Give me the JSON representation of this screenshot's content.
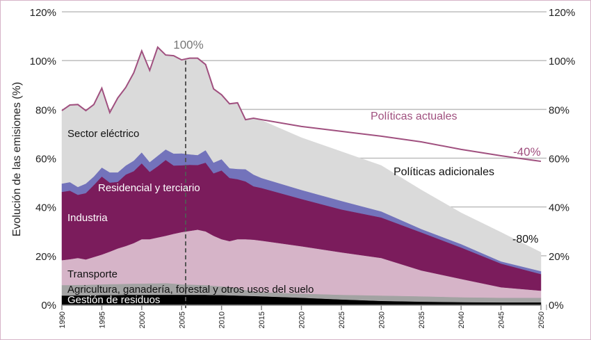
{
  "chart_data": {
    "type": "area",
    "stacked": true,
    "ylabel": "Evolución de las emisiones (%)",
    "ylim": [
      0,
      120
    ],
    "yticks": [
      "0%",
      "20%",
      "40%",
      "60%",
      "80%",
      "100%",
      "120%"
    ],
    "ytick_values": [
      0,
      20,
      40,
      60,
      80,
      100,
      120
    ],
    "xlim": [
      1990,
      2050
    ],
    "xticks": [
      "1990",
      "1995",
      "2000",
      "2005",
      "2010",
      "2015",
      "2020",
      "2025",
      "2030",
      "2035",
      "2040",
      "2045",
      "2050"
    ],
    "grid": "horizontal",
    "x": [
      1990,
      1991,
      1992,
      1993,
      1994,
      1995,
      1996,
      1997,
      1998,
      1999,
      2000,
      2001,
      2002,
      2003,
      2004,
      2005,
      2006,
      2007,
      2008,
      2009,
      2010,
      2011,
      2012,
      2013,
      2014,
      2015,
      2020,
      2025,
      2030,
      2035,
      2040,
      2045,
      2050
    ],
    "series": [
      {
        "name": "Gestión de residuos",
        "color": "#000000",
        "values": [
          3.7,
          3.7,
          3.8,
          3.8,
          3.8,
          3.9,
          3.9,
          3.9,
          4.0,
          4.0,
          4.0,
          4.0,
          4.0,
          4.0,
          4.0,
          4.0,
          4.0,
          4.0,
          4.0,
          3.9,
          3.9,
          3.8,
          3.7,
          3.6,
          3.5,
          3.4,
          2.8,
          2.1,
          1.5,
          1.2,
          1.0,
          0.9,
          0.9
        ]
      },
      {
        "name": "Agricultura, ganadería, forestal y otros usos del suelo",
        "color": "#a3a3a3",
        "values": [
          4.3,
          4.3,
          4.3,
          4.3,
          4.4,
          4.4,
          4.5,
          4.5,
          4.5,
          4.6,
          4.6,
          4.7,
          4.7,
          4.8,
          4.6,
          4.3,
          4.2,
          4.1,
          4.0,
          3.8,
          3.6,
          3.4,
          3.0,
          2.4,
          1.9,
          1.7,
          1.7,
          1.9,
          2.2,
          2.2,
          2.0,
          1.9,
          1.9
        ]
      },
      {
        "name": "Transporte",
        "color": "#d6b4c8",
        "values": [
          10.2,
          10.6,
          11.0,
          10.4,
          11.3,
          12.2,
          13.3,
          14.6,
          15.5,
          16.6,
          18.2,
          18.1,
          18.8,
          19.4,
          20.4,
          21.4,
          22.0,
          22.6,
          22.0,
          20.5,
          19.3,
          18.8,
          20.1,
          20.8,
          21.2,
          21.1,
          19.4,
          17.4,
          15.4,
          10.6,
          7.5,
          4.3,
          2.9
        ]
      },
      {
        "name": "Industria",
        "color": "#7b1c5c",
        "values": [
          28.0,
          28.1,
          25.9,
          27.2,
          29.5,
          32.0,
          28.3,
          27.3,
          29.3,
          29.5,
          31.1,
          27.6,
          29.2,
          31.1,
          28.0,
          27.4,
          27.1,
          26.5,
          28.2,
          25.6,
          28.2,
          25.9,
          24.6,
          23.7,
          21.9,
          21.6,
          19.4,
          17.6,
          16.6,
          15.6,
          12.9,
          9.7,
          6.8
        ]
      },
      {
        "name": "Residencial y terciario",
        "color": "#7373bb",
        "values": [
          3.4,
          3.5,
          3.2,
          3.9,
          3.5,
          3.7,
          4.2,
          3.9,
          3.7,
          4.3,
          4.5,
          4.0,
          4.3,
          4.3,
          4.9,
          4.9,
          4.3,
          4.1,
          5.1,
          4.4,
          4.6,
          4.0,
          4.2,
          5.0,
          4.8,
          4.1,
          3.7,
          3.5,
          2.5,
          1.4,
          1.4,
          0.9,
          1.2
        ]
      },
      {
        "name": "Sector eléctrico",
        "color": "#dadada",
        "values": [
          29.9,
          31.6,
          33.8,
          29.9,
          29.5,
          32.5,
          24.5,
          30.5,
          32.0,
          36.0,
          41.6,
          37.6,
          44.5,
          38.7,
          40.1,
          38.3,
          39.4,
          39.7,
          35.1,
          30.2,
          26.4,
          26.4,
          27.1,
          20.3,
          23.1,
          23.6,
          21.4,
          20.2,
          18.8,
          16.0,
          12.8,
          11.9,
          7.7
        ]
      }
    ],
    "line": {
      "name": "Políticas actuales",
      "color": "#a0507f",
      "values": [
        79.5,
        81.8,
        82.0,
        79.5,
        82.0,
        88.7,
        78.7,
        84.7,
        89.0,
        95.0,
        104.0,
        96.0,
        105.5,
        102.3,
        102.0,
        100.3,
        101.0,
        101.0,
        98.4,
        88.4,
        86.0,
        82.3,
        82.7,
        75.8,
        76.4,
        75.8,
        73.0,
        71.0,
        69.0,
        66.7,
        63.6,
        61.0,
        58.7
      ]
    },
    "reference_line": {
      "x": 2005.5,
      "label": "100%"
    },
    "annotations": {
      "politicas_actuales": "Políticas actuales",
      "politicas_adicionales": "Políticas adicionales",
      "minus40": "-40%",
      "minus80": "-80%"
    }
  }
}
